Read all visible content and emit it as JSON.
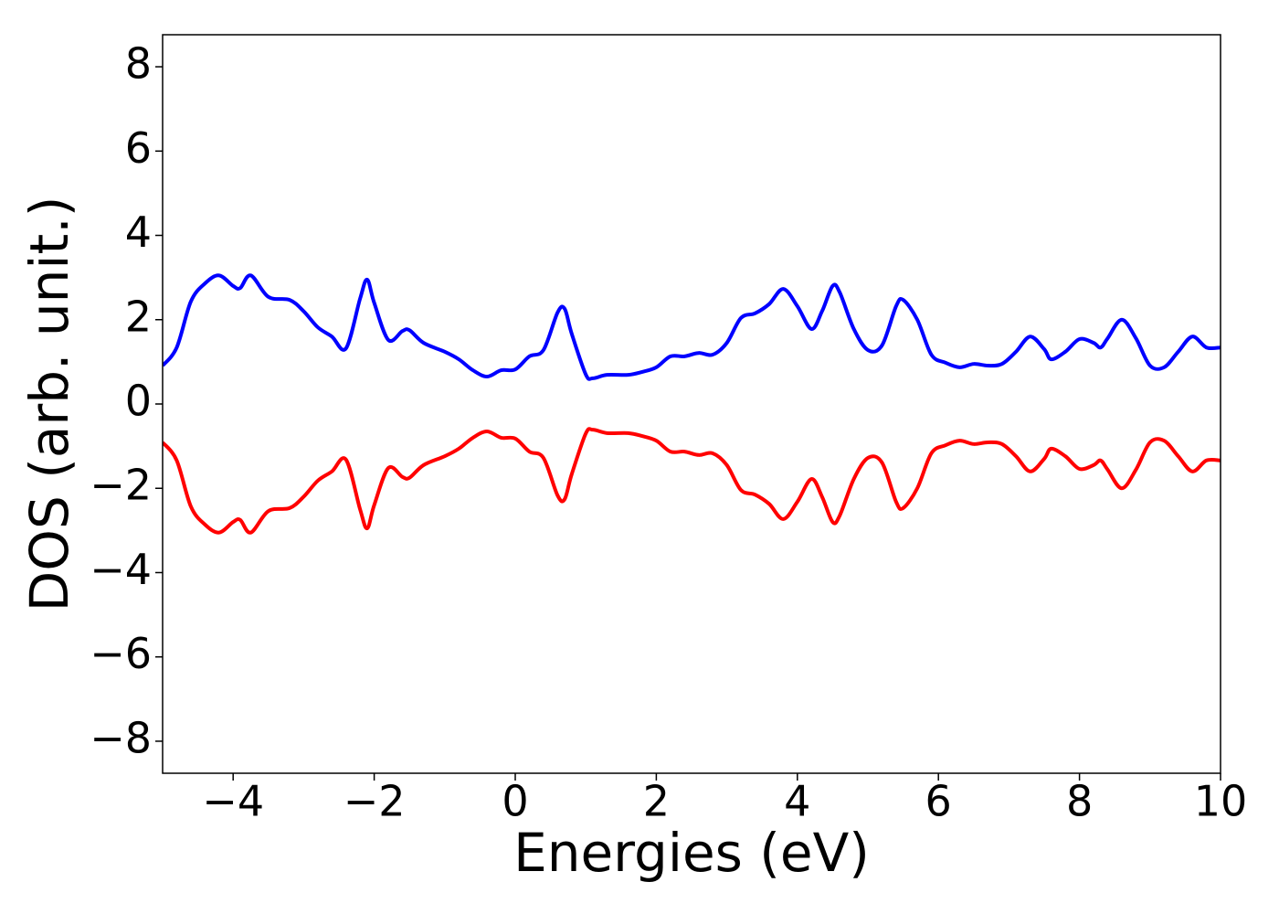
{
  "chart_data": {
    "type": "line",
    "xlabel": "Energies (eV)",
    "ylabel": "DOS (arb. unit.)",
    "x": [
      -5,
      -4.8,
      -4.6,
      -4.4,
      -4.2,
      -4.0,
      -3.9,
      -3.75,
      -3.5,
      -3.2,
      -3.0,
      -2.8,
      -2.6,
      -2.4,
      -2.2,
      -2.1,
      -2.0,
      -1.8,
      -1.6,
      -1.5,
      -1.3,
      -1.0,
      -0.8,
      -0.6,
      -0.4,
      -0.2,
      0,
      0.2,
      0.4,
      0.6,
      0.7,
      0.8,
      1.0,
      1.1,
      1.3,
      1.6,
      1.8,
      2.0,
      2.2,
      2.4,
      2.6,
      2.8,
      3.0,
      3.2,
      3.4,
      3.6,
      3.8,
      4.0,
      4.2,
      4.35,
      4.5,
      4.6,
      4.8,
      5.0,
      5.2,
      5.4,
      5.5,
      5.7,
      5.9,
      6.1,
      6.3,
      6.5,
      6.7,
      6.9,
      7.1,
      7.3,
      7.5,
      7.6,
      7.8,
      8.0,
      8.2,
      8.3,
      8.4,
      8.6,
      8.8,
      9.0,
      9.2,
      9.4,
      9.6,
      9.8,
      10
    ],
    "series": [
      {
        "color": "#0000ff",
        "values": [
          0.91,
          1.34,
          2.43,
          2.86,
          3.05,
          2.8,
          2.75,
          3.05,
          2.54,
          2.47,
          2.2,
          1.82,
          1.6,
          1.32,
          2.5,
          2.95,
          2.4,
          1.52,
          1.73,
          1.75,
          1.45,
          1.24,
          1.06,
          0.8,
          0.65,
          0.8,
          0.82,
          1.13,
          1.28,
          2.17,
          2.26,
          1.67,
          0.7,
          0.61,
          0.69,
          0.69,
          0.76,
          0.87,
          1.13,
          1.13,
          1.21,
          1.17,
          1.45,
          2.04,
          2.15,
          2.37,
          2.73,
          2.32,
          1.78,
          2.2,
          2.8,
          2.65,
          1.78,
          1.28,
          1.39,
          2.32,
          2.47,
          2.0,
          1.17,
          0.98,
          0.87,
          0.95,
          0.91,
          0.95,
          1.24,
          1.6,
          1.3,
          1.06,
          1.24,
          1.54,
          1.45,
          1.34,
          1.56,
          2.0,
          1.56,
          0.91,
          0.87,
          1.24,
          1.6,
          1.34,
          1.34
        ]
      },
      {
        "color": "#ff0000",
        "values": [
          -0.91,
          -1.34,
          -2.43,
          -2.86,
          -3.05,
          -2.8,
          -2.75,
          -3.05,
          -2.54,
          -2.47,
          -2.2,
          -1.82,
          -1.6,
          -1.32,
          -2.5,
          -2.95,
          -2.4,
          -1.52,
          -1.73,
          -1.75,
          -1.45,
          -1.24,
          -1.06,
          -0.8,
          -0.65,
          -0.8,
          -0.82,
          -1.13,
          -1.28,
          -2.17,
          -2.26,
          -1.67,
          -0.7,
          -0.61,
          -0.69,
          -0.69,
          -0.76,
          -0.87,
          -1.13,
          -1.13,
          -1.21,
          -1.17,
          -1.45,
          -2.04,
          -2.15,
          -2.37,
          -2.73,
          -2.32,
          -1.78,
          -2.2,
          -2.8,
          -2.65,
          -1.78,
          -1.28,
          -1.39,
          -2.32,
          -2.47,
          -2.0,
          -1.17,
          -0.98,
          -0.87,
          -0.95,
          -0.91,
          -0.95,
          -1.24,
          -1.6,
          -1.3,
          -1.06,
          -1.24,
          -1.54,
          -1.45,
          -1.34,
          -1.56,
          -2.0,
          -1.56,
          -0.91,
          -0.87,
          -1.24,
          -1.6,
          -1.34,
          -1.34
        ]
      }
    ],
    "xlim": [
      -5,
      10
    ],
    "xticks": [
      {
        "value": -4,
        "label": "−4"
      },
      {
        "value": -2,
        "label": "−2"
      },
      0,
      2,
      4,
      6,
      8,
      10
    ],
    "ylim": [
      -8.76,
      8.76
    ],
    "yticks": [
      {
        "value": -8,
        "label": "−8"
      },
      {
        "value": -6,
        "label": "−6"
      },
      {
        "value": -4,
        "label": "−4"
      },
      {
        "value": -2,
        "label": "−2"
      },
      0,
      2,
      4,
      6,
      8
    ],
    "grid": false
  }
}
